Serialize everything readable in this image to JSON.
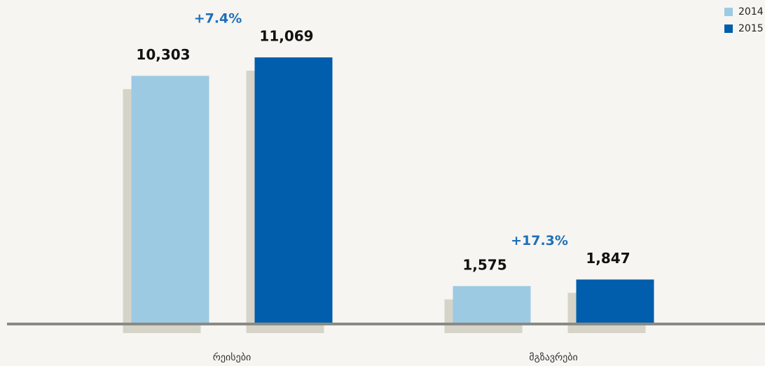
{
  "chart_data": {
    "type": "bar",
    "categories": [
      "რეისები",
      "მგზავრები"
    ],
    "series": [
      {
        "name": "2014",
        "color": "#9dcae3",
        "values": [
          10303,
          1575
        ],
        "value_labels": [
          "10,303",
          "1,575"
        ]
      },
      {
        "name": "2015",
        "color": "#005eac",
        "values": [
          11069,
          1847
        ],
        "value_labels": [
          "11,069",
          "1,847"
        ]
      }
    ],
    "annotations": [
      "+7.4%",
      "+17.3%"
    ],
    "legend": "top-right"
  }
}
